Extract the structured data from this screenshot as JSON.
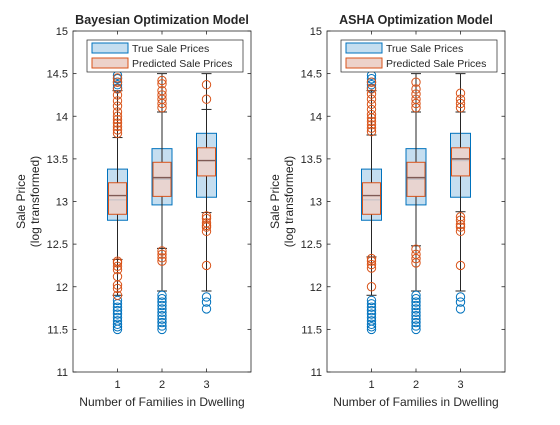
{
  "colors": {
    "true_edge": "#0072BD",
    "true_fill": "#C5DEF0",
    "pred_edge": "#D95319",
    "pred_fill": "#EDD2CA",
    "axis": "#262626",
    "median": "#7F5A55"
  },
  "chart_data": [
    {
      "type": "box",
      "title": "Bayesian Optimization Model",
      "xlabel": "Number of Families in Dwelling",
      "ylabel": [
        "Sale Price",
        "(log transformed)"
      ],
      "ylim": [
        11,
        15
      ],
      "xlim": [
        0,
        4
      ],
      "yticks": [
        "11",
        "11.5",
        "12",
        "12.5",
        "13",
        "13.5",
        "14",
        "14.5",
        "15"
      ],
      "categories": [
        "1",
        "2",
        "3"
      ],
      "legend": {
        "position": "top",
        "entries": [
          "True Sale Prices",
          "Predicted Sale Prices"
        ]
      },
      "series": [
        {
          "name": "True Sale Prices",
          "boxes": [
            {
              "category": "1",
              "q1": 12.78,
              "median": 13.02,
              "q3": 13.38,
              "whisker_low": 11.9,
              "whisker_high": 14.3,
              "outliers_low": [
                11.5,
                11.53,
                11.56,
                11.6,
                11.64,
                11.68,
                11.72,
                11.76,
                11.8,
                11.84
              ],
              "outliers_high": [
                14.33,
                14.37,
                14.4,
                14.44,
                14.48
              ]
            },
            {
              "category": "2",
              "q1": 12.96,
              "median": 13.26,
              "q3": 13.62,
              "whisker_low": 11.95,
              "whisker_high": 14.5,
              "outliers_low": [
                11.5,
                11.54,
                11.58,
                11.62,
                11.66,
                11.7,
                11.74,
                11.78,
                11.82,
                11.86,
                11.9
              ],
              "outliers_high": []
            },
            {
              "category": "3",
              "q1": 13.05,
              "median": 13.48,
              "q3": 13.8,
              "whisker_low": 11.95,
              "whisker_high": 14.5,
              "outliers_low": [
                11.74,
                11.82,
                11.88
              ],
              "outliers_high": []
            }
          ]
        },
        {
          "name": "Predicted Sale Prices",
          "boxes": [
            {
              "category": "1",
              "q1": 12.85,
              "median": 13.07,
              "q3": 13.22,
              "whisker_low": 12.32,
              "whisker_high": 13.75,
              "outliers_low": [
                11.9,
                11.98,
                12.02,
                12.12,
                12.2,
                12.24,
                12.28,
                12.3
              ],
              "outliers_high": [
                13.8,
                13.84,
                13.88,
                13.92,
                13.96,
                14.0,
                14.05,
                14.12,
                14.18,
                14.25,
                14.32,
                14.4,
                14.45
              ]
            },
            {
              "category": "2",
              "q1": 13.06,
              "median": 13.28,
              "q3": 13.46,
              "whisker_low": 12.45,
              "whisker_high": 14.05,
              "outliers_low": [
                12.3,
                12.34,
                12.38,
                12.42
              ],
              "outliers_high": [
                14.1,
                14.15,
                14.2,
                14.25,
                14.3,
                14.38,
                14.42
              ]
            },
            {
              "category": "3",
              "q1": 13.3,
              "median": 13.48,
              "q3": 13.63,
              "whisker_low": 12.87,
              "whisker_high": 14.08,
              "outliers_low": [
                12.25,
                12.65,
                12.7,
                12.72,
                12.75,
                12.8,
                12.83
              ],
              "outliers_high": [
                14.2,
                14.37
              ]
            }
          ]
        }
      ]
    },
    {
      "type": "box",
      "title": "ASHA Optimization Model",
      "xlabel": "Number of Families in Dwelling",
      "ylabel": [
        "Sale Price",
        "(log transformed)"
      ],
      "ylim": [
        11,
        15
      ],
      "xlim": [
        0,
        4
      ],
      "yticks": [
        "11",
        "11.5",
        "12",
        "12.5",
        "13",
        "13.5",
        "14",
        "14.5",
        "15"
      ],
      "categories": [
        "1",
        "2",
        "3"
      ],
      "legend": {
        "position": "top",
        "entries": [
          "True Sale Prices",
          "Predicted Sale Prices"
        ]
      },
      "series": [
        {
          "name": "True Sale Prices",
          "boxes": [
            {
              "category": "1",
              "q1": 12.78,
              "median": 13.02,
              "q3": 13.38,
              "whisker_low": 11.9,
              "whisker_high": 14.3,
              "outliers_low": [
                11.5,
                11.53,
                11.56,
                11.6,
                11.64,
                11.68,
                11.72,
                11.76,
                11.8,
                11.84
              ],
              "outliers_high": [
                14.33,
                14.37,
                14.4,
                14.44,
                14.48
              ]
            },
            {
              "category": "2",
              "q1": 12.96,
              "median": 13.26,
              "q3": 13.62,
              "whisker_low": 11.95,
              "whisker_high": 14.5,
              "outliers_low": [
                11.5,
                11.54,
                11.58,
                11.62,
                11.66,
                11.7,
                11.74,
                11.78,
                11.82,
                11.86,
                11.9
              ],
              "outliers_high": []
            },
            {
              "category": "3",
              "q1": 13.05,
              "median": 13.48,
              "q3": 13.8,
              "whisker_low": 11.95,
              "whisker_high": 14.5,
              "outliers_low": [
                11.74,
                11.82,
                11.88
              ],
              "outliers_high": []
            }
          ]
        },
        {
          "name": "Predicted Sale Prices",
          "boxes": [
            {
              "category": "1",
              "q1": 12.85,
              "median": 13.07,
              "q3": 13.22,
              "whisker_low": 12.35,
              "whisker_high": 13.78,
              "outliers_low": [
                12.0,
                12.22,
                12.26,
                12.3,
                12.33
              ],
              "outliers_high": [
                13.82,
                13.86,
                13.9,
                13.94,
                13.98,
                14.02,
                14.08,
                14.14,
                14.2,
                14.26,
                14.32,
                14.4
              ]
            },
            {
              "category": "2",
              "q1": 13.06,
              "median": 13.28,
              "q3": 13.46,
              "whisker_low": 12.48,
              "whisker_high": 14.05,
              "outliers_low": [
                12.28,
                12.33,
                12.38,
                12.44
              ],
              "outliers_high": [
                14.1,
                14.15,
                14.2,
                14.26,
                14.32,
                14.4
              ]
            },
            {
              "category": "3",
              "q1": 13.3,
              "median": 13.5,
              "q3": 13.63,
              "whisker_low": 12.88,
              "whisker_high": 14.05,
              "outliers_low": [
                12.25,
                12.65,
                12.7,
                12.73,
                12.78,
                12.82
              ],
              "outliers_high": [
                14.1,
                14.15,
                14.2,
                14.27
              ]
            }
          ]
        }
      ]
    }
  ]
}
